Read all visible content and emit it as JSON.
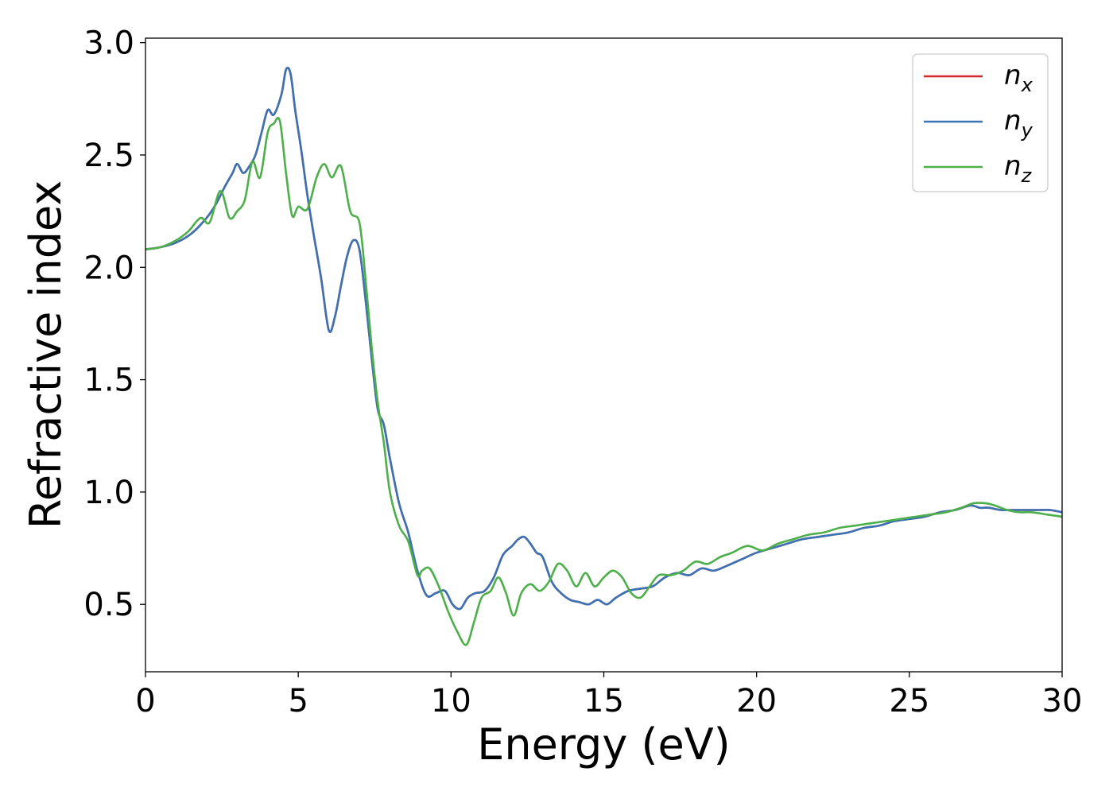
{
  "chart_data": {
    "type": "line",
    "title": "",
    "xlabel": "Energy (eV)",
    "ylabel": "Refractive index",
    "xlim": [
      0,
      30
    ],
    "ylim": [
      0.2,
      3.02
    ],
    "xticks": [
      0,
      5,
      10,
      15,
      20,
      25,
      30
    ],
    "yticks": [
      0.5,
      1.0,
      1.5,
      2.0,
      2.5,
      3.0
    ],
    "xtick_labels": [
      "0",
      "5",
      "10",
      "15",
      "20",
      "25",
      "30"
    ],
    "ytick_labels": [
      "0.5",
      "1.0",
      "1.5",
      "2.0",
      "2.5",
      "3.0"
    ],
    "grid": false,
    "legend_position": "top-right",
    "series": [
      {
        "name": "n_x",
        "legend_base": "n",
        "legend_sub": "x",
        "color": "#d62728",
        "x": [
          0,
          0.5,
          1.0,
          1.5,
          2.0,
          2.3,
          2.6,
          2.85,
          3.0,
          3.2,
          3.4,
          3.6,
          3.8,
          4.0,
          4.2,
          4.45,
          4.6,
          4.75,
          4.9,
          5.1,
          5.3,
          5.5,
          5.75,
          6.0,
          6.2,
          6.4,
          6.6,
          6.8,
          7.0,
          7.2,
          7.4,
          7.6,
          7.8,
          8.0,
          8.3,
          8.6,
          8.9,
          9.2,
          9.5,
          9.8,
          10.05,
          10.3,
          10.55,
          10.8,
          11.1,
          11.4,
          11.7,
          12.0,
          12.2,
          12.4,
          12.6,
          12.8,
          13.0,
          13.3,
          13.6,
          13.9,
          14.2,
          14.5,
          14.8,
          15.1,
          15.4,
          15.8,
          16.2,
          16.6,
          17.0,
          17.4,
          17.8,
          18.2,
          18.6,
          19.0,
          19.5,
          20.0,
          20.5,
          21.0,
          21.5,
          22.0,
          22.5,
          23.0,
          23.5,
          24.0,
          24.5,
          25.0,
          25.5,
          26.0,
          26.5,
          27.0,
          27.3,
          27.6,
          28.0,
          28.4,
          28.8,
          29.2,
          29.6,
          30.0
        ],
        "y": [
          2.08,
          2.09,
          2.11,
          2.15,
          2.22,
          2.28,
          2.36,
          2.42,
          2.46,
          2.42,
          2.45,
          2.5,
          2.6,
          2.7,
          2.68,
          2.77,
          2.88,
          2.86,
          2.7,
          2.52,
          2.32,
          2.15,
          1.95,
          1.72,
          1.78,
          1.92,
          2.05,
          2.12,
          2.08,
          1.86,
          1.6,
          1.37,
          1.3,
          1.15,
          0.95,
          0.82,
          0.65,
          0.54,
          0.55,
          0.56,
          0.5,
          0.48,
          0.53,
          0.55,
          0.56,
          0.62,
          0.72,
          0.76,
          0.79,
          0.8,
          0.77,
          0.73,
          0.71,
          0.6,
          0.55,
          0.52,
          0.51,
          0.5,
          0.52,
          0.5,
          0.53,
          0.56,
          0.57,
          0.58,
          0.62,
          0.64,
          0.63,
          0.66,
          0.65,
          0.67,
          0.7,
          0.73,
          0.75,
          0.77,
          0.79,
          0.8,
          0.81,
          0.82,
          0.84,
          0.85,
          0.87,
          0.88,
          0.89,
          0.91,
          0.92,
          0.94,
          0.93,
          0.93,
          0.92,
          0.92,
          0.92,
          0.92,
          0.92,
          0.91
        ]
      },
      {
        "name": "n_y",
        "legend_base": "n",
        "legend_sub": "y",
        "color": "#3a73b5",
        "x": [
          0,
          0.5,
          1.0,
          1.5,
          2.0,
          2.3,
          2.6,
          2.85,
          3.0,
          3.2,
          3.4,
          3.6,
          3.8,
          4.0,
          4.2,
          4.45,
          4.6,
          4.75,
          4.9,
          5.1,
          5.3,
          5.5,
          5.75,
          6.0,
          6.2,
          6.4,
          6.6,
          6.8,
          7.0,
          7.2,
          7.4,
          7.6,
          7.8,
          8.0,
          8.3,
          8.6,
          8.9,
          9.2,
          9.5,
          9.8,
          10.05,
          10.3,
          10.55,
          10.8,
          11.1,
          11.4,
          11.7,
          12.0,
          12.2,
          12.4,
          12.6,
          12.8,
          13.0,
          13.3,
          13.6,
          13.9,
          14.2,
          14.5,
          14.8,
          15.1,
          15.4,
          15.8,
          16.2,
          16.6,
          17.0,
          17.4,
          17.8,
          18.2,
          18.6,
          19.0,
          19.5,
          20.0,
          20.5,
          21.0,
          21.5,
          22.0,
          22.5,
          23.0,
          23.5,
          24.0,
          24.5,
          25.0,
          25.5,
          26.0,
          26.5,
          27.0,
          27.3,
          27.6,
          28.0,
          28.4,
          28.8,
          29.2,
          29.6,
          30.0
        ],
        "y": [
          2.08,
          2.09,
          2.11,
          2.15,
          2.22,
          2.28,
          2.36,
          2.42,
          2.46,
          2.42,
          2.45,
          2.5,
          2.6,
          2.7,
          2.68,
          2.77,
          2.88,
          2.86,
          2.7,
          2.52,
          2.32,
          2.15,
          1.95,
          1.72,
          1.78,
          1.92,
          2.05,
          2.12,
          2.08,
          1.86,
          1.6,
          1.37,
          1.3,
          1.15,
          0.95,
          0.82,
          0.65,
          0.54,
          0.55,
          0.56,
          0.5,
          0.48,
          0.53,
          0.55,
          0.56,
          0.62,
          0.72,
          0.76,
          0.79,
          0.8,
          0.77,
          0.73,
          0.71,
          0.6,
          0.55,
          0.52,
          0.51,
          0.5,
          0.52,
          0.5,
          0.53,
          0.56,
          0.57,
          0.58,
          0.62,
          0.64,
          0.63,
          0.66,
          0.65,
          0.67,
          0.7,
          0.73,
          0.75,
          0.77,
          0.79,
          0.8,
          0.81,
          0.82,
          0.84,
          0.85,
          0.87,
          0.88,
          0.89,
          0.91,
          0.92,
          0.94,
          0.93,
          0.93,
          0.92,
          0.92,
          0.92,
          0.92,
          0.92,
          0.91
        ]
      },
      {
        "name": "n_z",
        "legend_base": "n",
        "legend_sub": "z",
        "color": "#4daf4a",
        "x": [
          0,
          0.5,
          1.0,
          1.4,
          1.8,
          2.1,
          2.45,
          2.75,
          3.0,
          3.25,
          3.5,
          3.75,
          4.0,
          4.2,
          4.4,
          4.6,
          4.8,
          5.0,
          5.3,
          5.6,
          5.85,
          6.1,
          6.4,
          6.7,
          7.0,
          7.2,
          7.4,
          7.6,
          7.8,
          8.0,
          8.3,
          8.6,
          8.9,
          9.05,
          9.3,
          9.6,
          9.9,
          10.2,
          10.5,
          10.75,
          11.0,
          11.3,
          11.55,
          11.8,
          12.05,
          12.3,
          12.6,
          12.9,
          13.2,
          13.5,
          13.8,
          14.1,
          14.4,
          14.7,
          15.0,
          15.3,
          15.6,
          15.9,
          16.2,
          16.5,
          16.8,
          17.2,
          17.6,
          18.0,
          18.4,
          18.8,
          19.2,
          19.7,
          20.2,
          20.7,
          21.2,
          21.7,
          22.2,
          22.7,
          23.2,
          23.7,
          24.2,
          24.7,
          25.2,
          25.7,
          26.2,
          26.7,
          27.1,
          27.5,
          27.8,
          28.2,
          28.6,
          29.0,
          29.5,
          30.0
        ],
        "y": [
          2.08,
          2.09,
          2.12,
          2.16,
          2.22,
          2.2,
          2.34,
          2.22,
          2.25,
          2.3,
          2.47,
          2.4,
          2.6,
          2.64,
          2.65,
          2.42,
          2.23,
          2.27,
          2.26,
          2.4,
          2.46,
          2.4,
          2.45,
          2.25,
          2.2,
          1.95,
          1.65,
          1.4,
          1.22,
          1.0,
          0.85,
          0.78,
          0.63,
          0.65,
          0.66,
          0.58,
          0.47,
          0.38,
          0.32,
          0.42,
          0.53,
          0.56,
          0.62,
          0.55,
          0.45,
          0.55,
          0.59,
          0.56,
          0.6,
          0.68,
          0.65,
          0.58,
          0.64,
          0.58,
          0.62,
          0.65,
          0.62,
          0.55,
          0.53,
          0.58,
          0.63,
          0.63,
          0.65,
          0.69,
          0.68,
          0.71,
          0.73,
          0.76,
          0.74,
          0.77,
          0.79,
          0.81,
          0.82,
          0.84,
          0.85,
          0.86,
          0.87,
          0.88,
          0.89,
          0.9,
          0.91,
          0.93,
          0.95,
          0.95,
          0.94,
          0.92,
          0.91,
          0.91,
          0.9,
          0.89
        ]
      }
    ]
  }
}
